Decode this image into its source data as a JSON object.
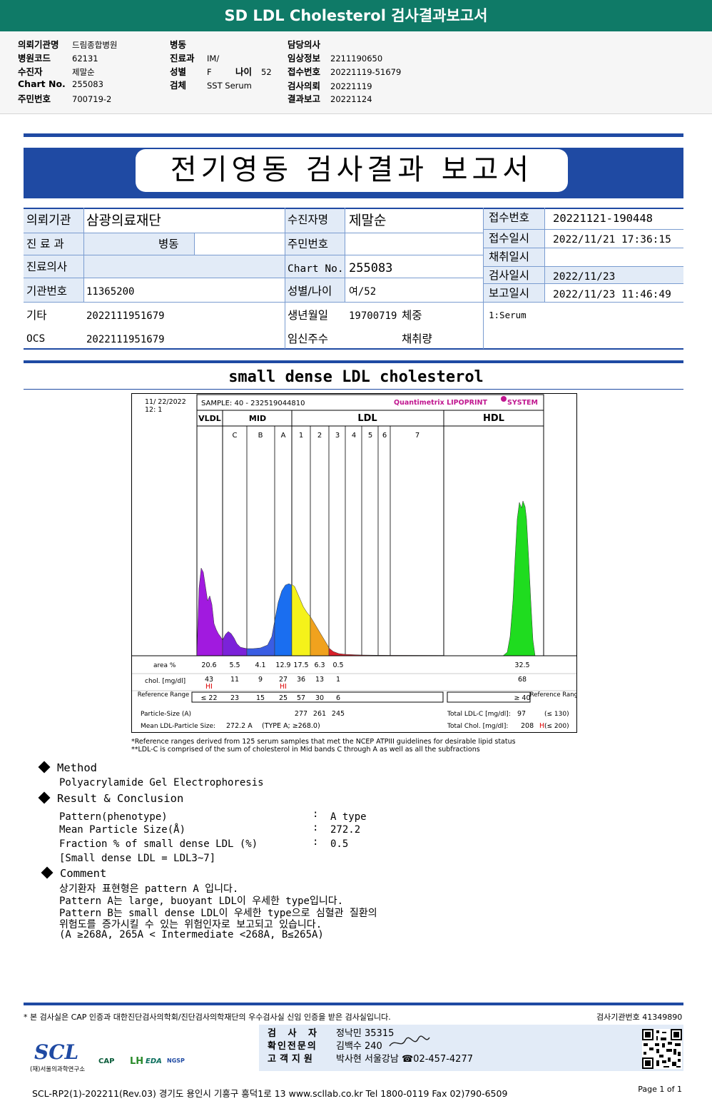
{
  "top": {
    "title": "SD LDL Cholesterol 검사결과보고서",
    "col1": [
      {
        "k": "의뢰기관명",
        "v": "드림종합병원"
      },
      {
        "k": "병원코드",
        "v": "62131"
      },
      {
        "k": "수진자",
        "v": "제말순"
      },
      {
        "k": "Chart No.",
        "v": "255083"
      },
      {
        "k": "주민번호",
        "v": "700719-2"
      }
    ],
    "col2": [
      {
        "k": "병동",
        "v": ""
      },
      {
        "k": "진료과",
        "v": "IM/"
      },
      {
        "k": "성별",
        "v": "F"
      },
      {
        "k": "검체",
        "v": "SST Serum"
      }
    ],
    "age_k": "나이",
    "age_v": "52",
    "col3": [
      {
        "k": "담당의사",
        "v": ""
      },
      {
        "k": "임상정보",
        "v": "2211190650"
      },
      {
        "k": "접수번호",
        "v": "20221119-51679"
      },
      {
        "k": "검사의뢰",
        "v": "20221119"
      },
      {
        "k": "결과보고",
        "v": "20221124"
      }
    ]
  },
  "report": {
    "title": "전기영동 검사결과 보고서",
    "labels": {
      "inst": "의뢰기관",
      "dept": "진 료 과",
      "doctor": "진료의사",
      "inst_no": "기관번호",
      "etc": "기타",
      "ocs": "OCS",
      "patient": "수진자명",
      "rrn": "주민번호",
      "chart": "Chart No.",
      "sexage": "성별/나이",
      "birth": "생년월일",
      "weight": "체중",
      "preg": "임신주수",
      "vol": "채취량",
      "recv_no": "접수번호",
      "recv_dt": "접수일시",
      "coll_dt": "채취일시",
      "test_dt": "검사일시",
      "report_dt": "보고일시"
    },
    "values": {
      "inst": "삼광의료재단",
      "dept": "병동",
      "inst_no": "11365200",
      "etc": "2022111951679",
      "ocs": "2022111951679",
      "patient": "제말순",
      "chart": "255083",
      "sexage": "여/52",
      "birth": "19700719",
      "recv_no": "20221121-190448",
      "recv_dt": "2022/11/21 17:36:15",
      "test_dt": "2022/11/23",
      "report_dt": "2022/11/23 11:46:49",
      "specimen": "1:Serum"
    }
  },
  "section_title": "small dense LDL cholesterol",
  "chart_data": {
    "type": "area",
    "header": {
      "date": "11/ 22/2022",
      "sub": "12:  1",
      "sample": "SAMPLE:   40 - 232519044810",
      "brand": "Quantimetrix LIPOPRINT",
      "brand2": "SYSTEM"
    },
    "groups": [
      "VLDL",
      "MID",
      "LDL",
      "HDL"
    ],
    "bands": [
      "C",
      "B",
      "A",
      "1",
      "2",
      "3",
      "4",
      "5",
      "6",
      "7"
    ],
    "row_labels": {
      "area": "area %",
      "chol": "chol. [mg/dl]",
      "ref": "Reference Range",
      "ref_r": "Reference Range"
    },
    "area": [
      "20.6",
      "5.5",
      "4.1",
      "12.9",
      "17.5",
      "6.3",
      "0.5",
      "32.5"
    ],
    "chol": [
      "43",
      "11",
      "9",
      "27",
      "36",
      "13",
      "1",
      "68"
    ],
    "flags": [
      "HI",
      "HI"
    ],
    "ref": [
      "≤ 22",
      "23",
      "15",
      "25",
      "57",
      "30",
      "6",
      "≥ 40"
    ],
    "particle_size_label": "Particle-Size (A)",
    "particle_sizes": [
      "277",
      "261",
      "245"
    ],
    "mean_label": "Mean LDL-Particle Size:",
    "mean_value": "272.2  A",
    "mean_type": "(TYPE A; ≥268.0)",
    "total_ldl_label": "Total LDL-C [mg/dl]:",
    "total_ldl": "97",
    "total_ldl_ref": "(≤ 130)",
    "total_chol_label": "Total Chol. [mg/dl]:",
    "total_chol": "208",
    "total_chol_flag": "H",
    "total_chol_ref": "(≤ 200)",
    "colors": {
      "vldl": "#a11adf",
      "mid_c": "#7b22d9",
      "mid_b": "#3a5de3",
      "mid_a": "#1a6ef0",
      "ldl1": "#0a3bf0",
      "ldl2": "#f5f21a",
      "ldl3": "#f0a21e",
      "ldl4": "#d9202a",
      "hdl": "#1fdc1f"
    }
  },
  "footnotes": [
    "*Reference ranges derived from 125 serum samples that met the NCEP ATPIII guidelines for desirable lipid status",
    "**LDL-C is comprised of the sum of cholesterol in Mid bands C through A as well as all the subfractions"
  ],
  "method": {
    "title": "Method",
    "text": "Polyacrylamide Gel Electrophoresis"
  },
  "result": {
    "title": "Result & Conclusion",
    "rows": [
      {
        "k": "Pattern(phenotype)",
        "v": "A type"
      },
      {
        "k": "Mean Particle Size(Å)",
        "v": "272.2"
      },
      {
        "k": "Fraction % of small dense LDL (%)",
        "v": "0.5"
      }
    ],
    "note": "[Small dense LDL = LDL3~7]"
  },
  "comment": {
    "title": "Comment",
    "lines": [
      "상기환자 표현형은 pattern A 입니다.",
      "Pattern A는 large, buoyant LDL이 우세한 type입니다.",
      "Pattern B는 small dense LDL이 우세한 type으로 심혈관 질환의",
      "위험도를 증가시킬 수 있는 위험인자로 보고되고 있습니다.",
      "(A ≥268A, 265A < Intermediate <268A, B≤265A)"
    ]
  },
  "footer": {
    "cert": "* 본 검사실은 CAP 인증과 대한진단검사의학회/진단검사의학재단의 우수검사실 신임 인증을 받은 검사실입니다.",
    "lab_no": "검사기관번호 41349890",
    "staff": [
      {
        "k": "검 사 자",
        "v": "정낙민 35315"
      },
      {
        "k": "확인전문의",
        "v": "김백수 240"
      },
      {
        "k": "고객지원",
        "v": "박사현 서울강남 ☎02-457-4277"
      }
    ],
    "logo": "SCL",
    "logo_sub": "(재)서울의과학연구소",
    "cert_logos": [
      "CAP",
      "LH",
      "EDA",
      "NGSP"
    ],
    "address": "SCL-RP2(1)-202211(Rev.03)  경기도 용인시 기흥구 흥덕1로 13  www.scllab.co.kr  Tel 1800-0119  Fax 02)790-6509",
    "page": "Page 1 of 1"
  }
}
